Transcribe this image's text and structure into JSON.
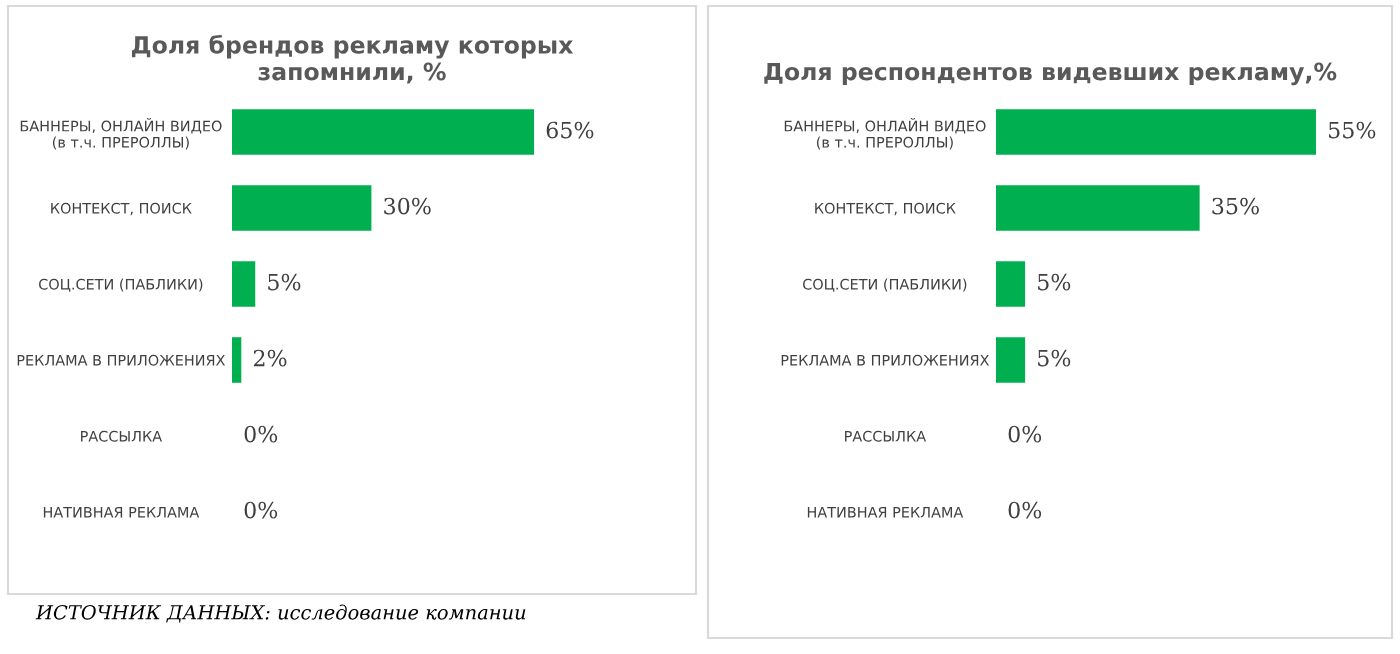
{
  "chart_data": [
    {
      "type": "bar",
      "orientation": "horizontal",
      "title": "Доля брендов рекламу которых\nзапомнили, %",
      "categories": [
        "БАННЕРЫ, ОНЛАЙН ВИДЕО\n(в т.ч. ПРЕРОЛЛЫ)",
        "КОНТЕКСТ, ПОИСК",
        "СОЦ.СЕТИ (ПАБЛИКИ)",
        "РЕКЛАМА В ПРИЛОЖЕНИЯХ",
        "РАССЫЛКА",
        "НАТИВНАЯ РЕКЛАМА"
      ],
      "values": [
        65,
        30,
        5,
        2,
        0,
        0
      ],
      "color": "#00b050",
      "value_labels": [
        "65%",
        "30%",
        "5%",
        "2%",
        "0%",
        "0%"
      ],
      "tick_labels": "y",
      "grid": false,
      "annotations": [
        "ИСТОЧНИК ДАННЫХ: исследование компании"
      ]
    },
    {
      "type": "bar",
      "orientation": "horizontal",
      "title": "Доля респондентов видевших рекламу,%",
      "categories": [
        "БАННЕРЫ, ОНЛАЙН ВИДЕО\n(в т.ч. ПРЕРОЛЛЫ)",
        "КОНТЕКСТ, ПОИСК",
        "СОЦ.СЕТИ (ПАБЛИКИ)",
        "РЕКЛАМА В ПРИЛОЖЕНИЯХ",
        "РАССЫЛКА",
        "НАТИВНАЯ РЕКЛАМА"
      ],
      "values": [
        55,
        35,
        5,
        5,
        0,
        0
      ],
      "color": "#00b050",
      "value_labels": [
        "55%",
        "35%",
        "5%",
        "5%",
        "0%",
        "0%"
      ],
      "tick_labels": "y",
      "grid": false
    }
  ]
}
